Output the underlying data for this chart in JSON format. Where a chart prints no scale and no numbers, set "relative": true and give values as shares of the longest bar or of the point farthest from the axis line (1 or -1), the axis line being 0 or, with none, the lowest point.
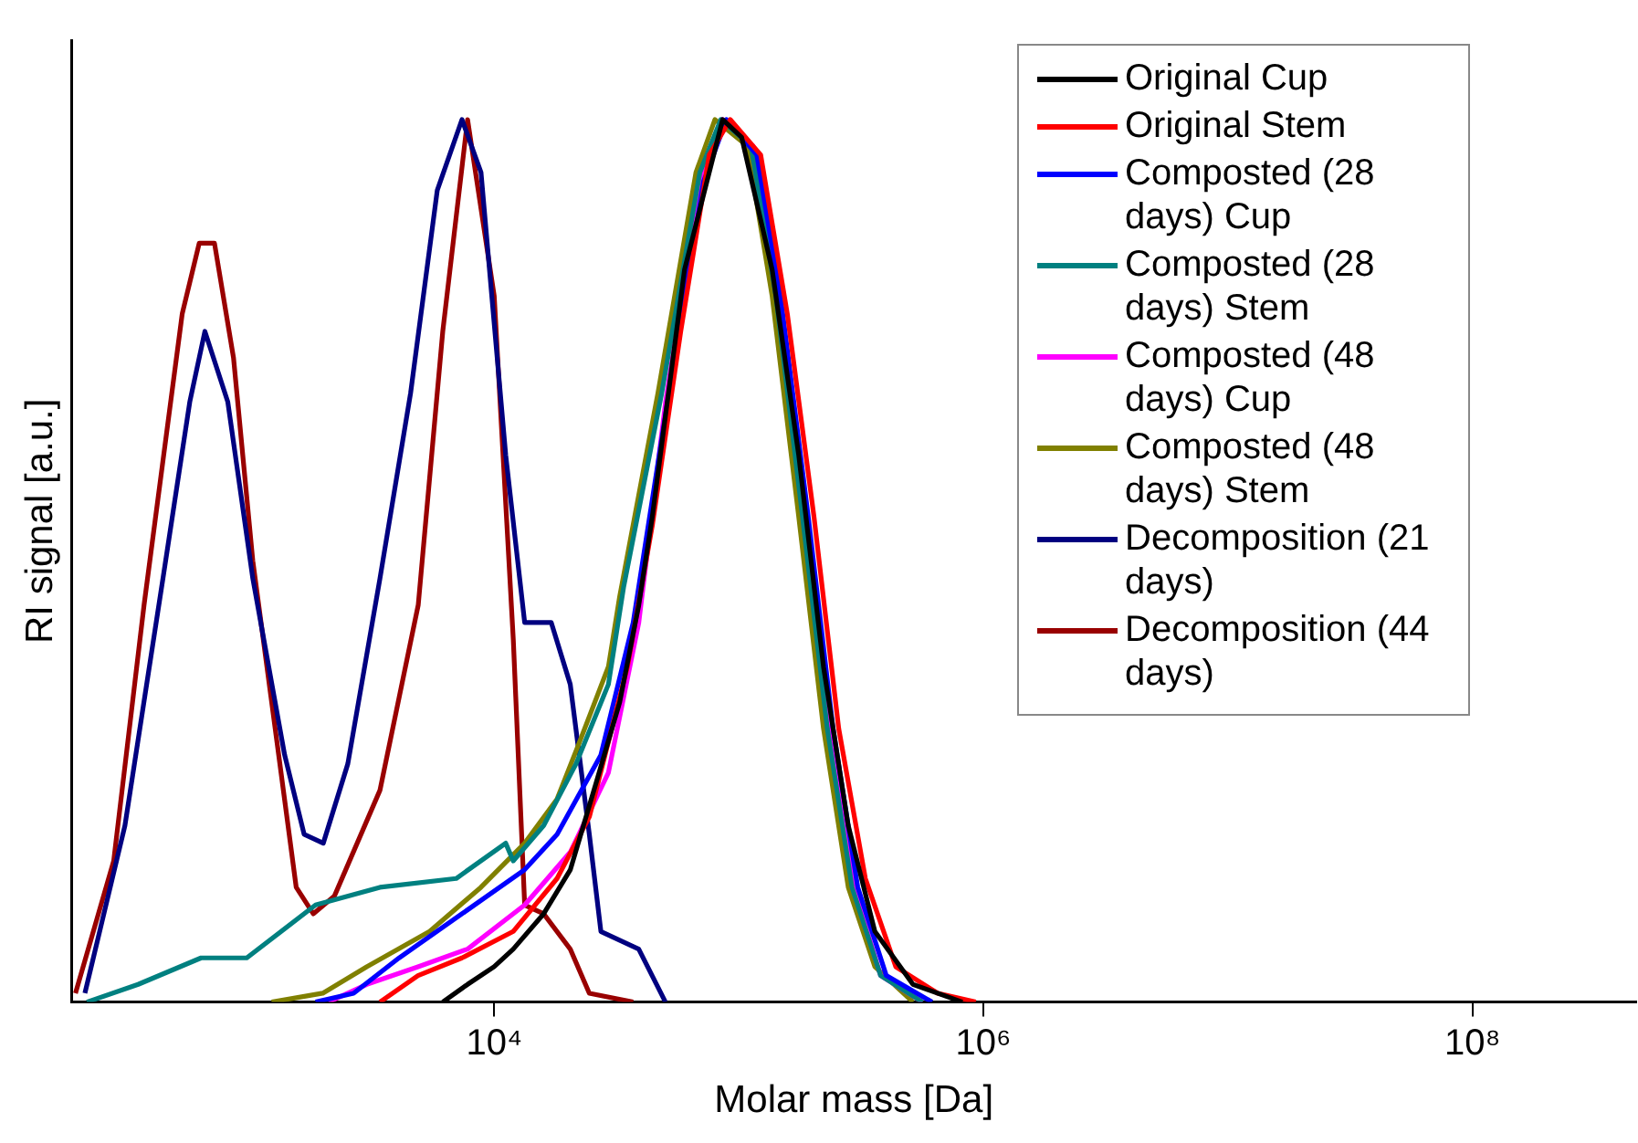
{
  "chart_data": {
    "type": "line",
    "xlabel": "Molar mass [Da]",
    "ylabel": "RI signal [a.u.]",
    "relative": true,
    "log": "x",
    "grid": false,
    "legend": "top right",
    "marker": "none",
    "line_style": "solid",
    "xlim": [
      187,
      467000000
    ],
    "xticks": [
      {
        "value": 10000,
        "label": "10⁴"
      },
      {
        "value": 1000000,
        "label": "10⁶"
      },
      {
        "value": 100000000,
        "label": "10⁸"
      }
    ],
    "series": [
      {
        "name": "Original Cup",
        "color": "#000000",
        "x": [
          6160,
          7780,
          9990,
          11960,
          15930,
          20480,
          26200,
          32600,
          39000,
          44300,
          60000,
          85900,
          102700,
          136900,
          175800,
          222000,
          280300,
          360100,
          515400,
          821200
        ],
        "values": [
          0,
          0.02,
          0.04,
          0.06,
          0.1,
          0.15,
          0.25,
          0.34,
          0.45,
          0.55,
          0.83,
          1.0,
          0.98,
          0.83,
          0.62,
          0.38,
          0.2,
          0.08,
          0.02,
          0
        ]
      },
      {
        "name": "Original Stem",
        "color": "#ff0000",
        "x": [
          3410,
          4880,
          7380,
          11960,
          18070,
          24500,
          35050,
          44300,
          57900,
          75700,
          92300,
          122900,
          157900,
          203000,
          256200,
          329300,
          438500,
          650700,
          931000
        ],
        "values": [
          0,
          0.03,
          0.05,
          0.08,
          0.14,
          0.21,
          0.38,
          0.54,
          0.76,
          0.96,
          1.0,
          0.96,
          0.78,
          0.55,
          0.31,
          0.14,
          0.04,
          0.01,
          0
        ]
      },
      {
        "name": "Composted (28 days) Cup",
        "color": "#0000ff",
        "x": [
          1860,
          2660,
          4080,
          7380,
          13320,
          18070,
          27300,
          37000,
          51100,
          71800,
          89000,
          118500,
          149700,
          192300,
          242800,
          306500,
          401000,
          616600
        ],
        "values": [
          0,
          0.01,
          0.05,
          0.1,
          0.15,
          0.19,
          0.28,
          0.43,
          0.68,
          0.93,
          1.0,
          0.96,
          0.79,
          0.55,
          0.31,
          0.13,
          0.03,
          0
        ]
      },
      {
        "name": "Composted (28 days) Stem",
        "color": "#008080",
        "x": [
          216,
          350,
          633,
          973,
          1860,
          3410,
          6990,
          11140,
          11960,
          15930,
          21610,
          29300,
          33800,
          48400,
          69300,
          84400,
          112300,
          141900,
          182200,
          230100,
          290400,
          380100,
          563700
        ],
        "values": [
          0,
          0.02,
          0.05,
          0.05,
          0.11,
          0.13,
          0.14,
          0.18,
          0.16,
          0.2,
          0.27,
          0.36,
          0.47,
          0.69,
          0.94,
          1.0,
          0.97,
          0.8,
          0.55,
          0.31,
          0.13,
          0.03,
          0
        ]
      },
      {
        "name": "Composted (48 days) Cup",
        "color": "#ff00ff",
        "x": [
          2100,
          3010,
          4880,
          7780,
          13320,
          20480,
          29300,
          39000,
          50200,
          70500,
          85900,
          114400,
          144400,
          185500,
          234300,
          295700,
          380100,
          563700
        ],
        "values": [
          0,
          0.02,
          0.04,
          0.06,
          0.11,
          0.17,
          0.26,
          0.43,
          0.68,
          0.94,
          1.0,
          0.97,
          0.8,
          0.55,
          0.31,
          0.13,
          0.03,
          0
        ]
      },
      {
        "name": "Composted (48 days) Stem",
        "color": "#808000",
        "x": [
          1230,
          1990,
          3010,
          5440,
          8820,
          13320,
          18070,
          22000,
          29300,
          32600,
          46700,
          66800,
          79900,
          108400,
          136900,
          175800,
          222000,
          280300,
          360100,
          515400
        ],
        "values": [
          0,
          0.01,
          0.04,
          0.08,
          0.13,
          0.18,
          0.23,
          0.29,
          0.38,
          0.46,
          0.69,
          0.94,
          1.0,
          0.97,
          0.8,
          0.55,
          0.31,
          0.13,
          0.04,
          0
        ]
      },
      {
        "name": "Decomposition (21 days)",
        "color": "#000080",
        "x": [
          212,
          309,
          442,
          569,
          656,
          814,
          1030,
          1390,
          1670,
          2000,
          2520,
          3410,
          4550,
          5850,
          7380,
          8830,
          11140,
          13320,
          17110,
          20460,
          24480,
          27300,
          38990,
          50130
        ],
        "values": [
          0.01,
          0.2,
          0.48,
          0.68,
          0.76,
          0.68,
          0.48,
          0.28,
          0.19,
          0.18,
          0.27,
          0.48,
          0.69,
          0.92,
          1.0,
          0.94,
          0.62,
          0.43,
          0.43,
          0.36,
          0.19,
          0.08,
          0.06,
          0
        ]
      },
      {
        "name": "Decomposition (44 days)",
        "color": "#990000",
        "x": [
          194,
          278,
          370,
          530,
          622,
          718,
          859,
          1030,
          1300,
          1550,
          1820,
          2220,
          3410,
          4890,
          6160,
          7780,
          10000,
          11970,
          13320,
          15920,
          20460,
          24480,
          36980
        ],
        "values": [
          0.01,
          0.16,
          0.45,
          0.78,
          0.86,
          0.86,
          0.73,
          0.5,
          0.29,
          0.13,
          0.1,
          0.12,
          0.24,
          0.45,
          0.76,
          1.0,
          0.8,
          0.41,
          0.11,
          0.1,
          0.06,
          0.01,
          0
        ]
      }
    ]
  }
}
